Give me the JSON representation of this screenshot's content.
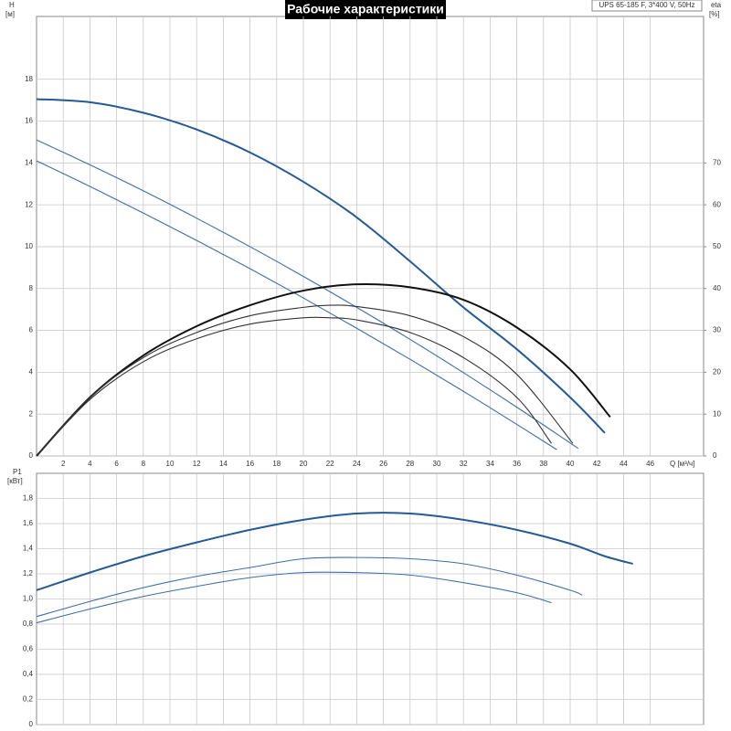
{
  "chart_data": [
    {
      "type": "line",
      "title": "Рабочие характеристики",
      "subtitle": "UPS 65-185 F, 3*400 V, 50Hz",
      "ylabel": "H",
      "yunit": "[м]",
      "y2label": "eta",
      "y2unit": "[%]",
      "xlabel": "Q [м³/ч]",
      "xlim": [
        0,
        50
      ],
      "xticks": [
        2,
        4,
        6,
        8,
        10,
        12,
        14,
        16,
        18,
        20,
        22,
        24,
        26,
        28,
        30,
        32,
        34,
        36,
        38,
        40,
        42,
        44,
        46
      ],
      "ylim": [
        0,
        21
      ],
      "yticks": [
        0,
        2,
        4,
        6,
        8,
        10,
        12,
        14,
        16,
        18
      ],
      "y2lim": [
        0,
        105
      ],
      "y2ticks": [
        0,
        10,
        20,
        30,
        40,
        50,
        60,
        70
      ],
      "grid": true,
      "series": [
        {
          "color": "#245a96",
          "x": [
            0,
            4,
            8,
            12,
            16,
            20,
            24,
            28,
            32,
            36,
            40,
            42.6
          ],
          "values": [
            17.05,
            16.9,
            16.4,
            15.6,
            14.5,
            13.1,
            11.4,
            9.3,
            7.1,
            5.1,
            2.8,
            1.1
          ]
        },
        {
          "color": "#3d6ea8",
          "x": [
            0,
            4,
            8,
            12,
            16,
            20,
            24,
            28,
            32,
            36,
            40,
            40.6
          ],
          "values": [
            15.1,
            13.91,
            12.67,
            11.36,
            10.0,
            8.58,
            7.1,
            5.57,
            3.98,
            2.33,
            0.62,
            0.36
          ]
        },
        {
          "color": "#3d6ea8",
          "x": [
            0,
            4,
            8,
            12,
            16,
            20,
            24,
            28,
            32,
            36,
            39
          ],
          "values": [
            14.1,
            12.88,
            11.61,
            10.3,
            8.95,
            7.55,
            6.1,
            4.62,
            3.09,
            1.51,
            0.3
          ]
        },
        {
          "color": "#111111",
          "axis": "y2",
          "x": [
            0,
            4,
            8,
            12,
            16,
            20,
            24,
            28,
            32,
            36,
            40,
            43
          ],
          "values": [
            0,
            14,
            24,
            31,
            36,
            39.5,
            41,
            40.3,
            37.3,
            30.7,
            20.7,
            9.3
          ]
        },
        {
          "color": "#333333",
          "axis": "y2",
          "x": [
            0,
            4,
            8,
            12,
            16,
            20,
            22,
            24,
            28,
            32,
            36,
            40.2
          ],
          "values": [
            0,
            14,
            23.5,
            29.5,
            33.5,
            35.5,
            36,
            35.7,
            33.5,
            28.5,
            19.5,
            3
          ]
        },
        {
          "color": "#333333",
          "axis": "y2",
          "x": [
            0,
            4,
            8,
            12,
            16,
            20,
            22,
            24,
            28,
            32,
            36,
            38.6
          ],
          "values": [
            0,
            13.5,
            22.5,
            28,
            31.5,
            33,
            33,
            32.5,
            29.5,
            23.5,
            14,
            3
          ]
        }
      ]
    },
    {
      "type": "line",
      "ylabel": "P1",
      "yunit": "[кВт]",
      "xlim": [
        0,
        50
      ],
      "xticks": [
        2,
        4,
        6,
        8,
        10,
        12,
        14,
        16,
        18,
        20,
        22,
        24,
        26,
        28,
        30,
        32,
        34,
        36,
        38,
        40,
        42,
        44,
        46
      ],
      "ylim": [
        0,
        2.0
      ],
      "yticks": [
        0,
        {
          "value": 0.2,
          "label": "0,2"
        },
        {
          "value": 0.4,
          "label": "0,4"
        },
        {
          "value": 0.6,
          "label": "0,6"
        },
        {
          "value": 0.8,
          "label": "0,8"
        },
        {
          "value": 1.0,
          "label": "1,0"
        },
        {
          "value": 1.2,
          "label": "1,2"
        },
        {
          "value": 1.4,
          "label": "1,4"
        },
        {
          "value": 1.6,
          "label": "1,6"
        },
        {
          "value": 1.8,
          "label": "1,8"
        }
      ],
      "grid": true,
      "series": [
        {
          "color": "#245a96",
          "x": [
            0,
            4,
            8,
            12,
            16,
            20,
            24,
            28,
            32,
            36,
            40,
            42.6,
            44.7
          ],
          "values": [
            1.07,
            1.21,
            1.34,
            1.45,
            1.55,
            1.63,
            1.68,
            1.68,
            1.63,
            1.55,
            1.44,
            1.34,
            1.28
          ]
        },
        {
          "color": "#3d6ea8",
          "x": [
            0,
            4,
            8,
            12,
            16,
            20,
            24,
            28,
            32,
            36,
            40,
            40.9
          ],
          "values": [
            0.86,
            0.98,
            1.09,
            1.18,
            1.25,
            1.32,
            1.33,
            1.32,
            1.28,
            1.19,
            1.07,
            1.03
          ]
        },
        {
          "color": "#3d6ea8",
          "x": [
            0,
            4,
            8,
            12,
            16,
            20,
            24,
            28,
            32,
            36,
            38.6
          ],
          "values": [
            0.81,
            0.92,
            1.02,
            1.1,
            1.17,
            1.21,
            1.21,
            1.19,
            1.13,
            1.05,
            0.97
          ]
        }
      ]
    }
  ]
}
